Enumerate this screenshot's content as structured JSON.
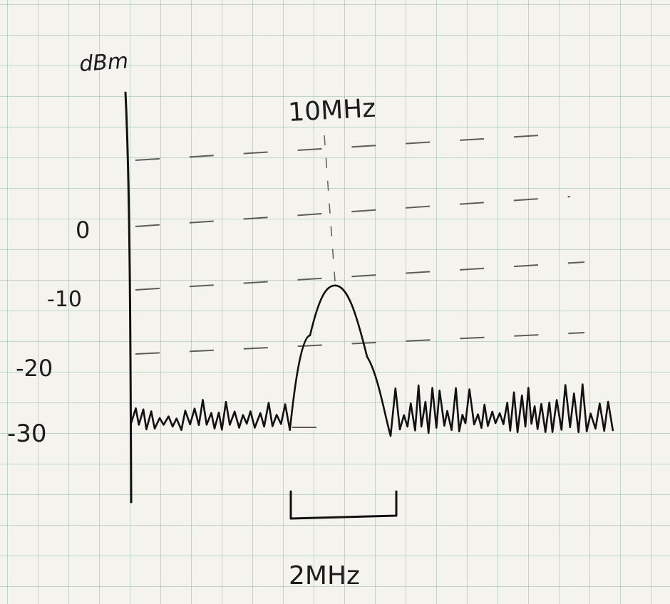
{
  "diagram": {
    "y_unit": "dBm",
    "center_label": "10MHz",
    "bandwidth_label": "2MHz",
    "y_ticks": [
      "0",
      "-10",
      "-20",
      "-30"
    ]
  },
  "chart_data": {
    "type": "line",
    "ylabel": "dBm",
    "y_ticks": [
      0,
      -10,
      -20,
      -30
    ],
    "noise_floor_dbm": -30,
    "peak_dbm": -9,
    "center_frequency_label": "10MHz",
    "bandwidth_label": "2MHz",
    "grid": true
  },
  "colors": {
    "ink": "#1c1c1c",
    "grid": "#96b9af",
    "paper": "#f4f3ee"
  }
}
